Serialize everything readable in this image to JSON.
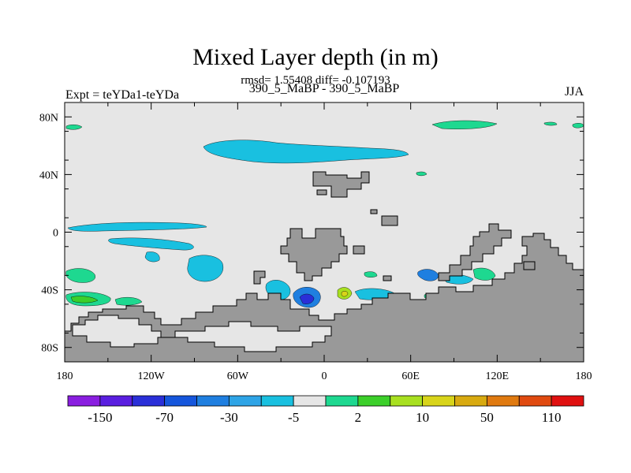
{
  "chart_data": {
    "type": "heatmap",
    "title": "Mixed Layer depth (in m)",
    "stats_line": "rmsd= 1.55408 diff= -0.107193",
    "left_label": "Expt = teYDa1-teYDa",
    "center_label": "390_5_MaBP - 390_5_MaBP",
    "right_label": "JJA",
    "x_ticks": [
      "180",
      "120W",
      "60W",
      "0",
      "60E",
      "120E",
      "180"
    ],
    "x_tick_values": [
      -180,
      -120,
      -60,
      0,
      60,
      120,
      180
    ],
    "y_ticks": [
      "80N",
      "40N",
      "0",
      "40S",
      "80S"
    ],
    "y_tick_values": [
      80,
      40,
      0,
      -40,
      -80
    ],
    "xlim": [
      -180,
      180
    ],
    "ylim": [
      -90,
      90
    ],
    "colorbar_labels": [
      "-150",
      "-70",
      "-30",
      "-5",
      "2",
      "10",
      "50",
      "110"
    ],
    "colorbar_colors": [
      "#8a1ee0",
      "#5a1ee0",
      "#2a2fd8",
      "#1556dc",
      "#1f7fe0",
      "#2ea4e6",
      "#19c0e0",
      "#e6e6e6",
      "#1ed890",
      "#3ccf2a",
      "#a8e020",
      "#d8d41a",
      "#d8aa10",
      "#e07a10",
      "#e04a10",
      "#e01010"
    ],
    "background_color": "#e6e6e6",
    "land_color": "#999999"
  }
}
